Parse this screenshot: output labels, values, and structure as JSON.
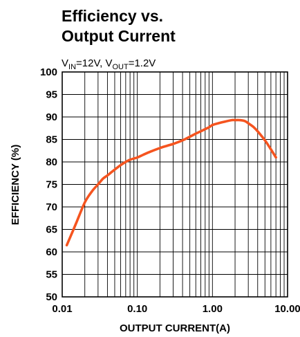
{
  "chart_data": {
    "type": "line",
    "title_line1": "Efficiency vs.",
    "title_line2": "Output Current",
    "condition": {
      "vin_prefix": "V",
      "vin_sub": "IN",
      "vin_value": "=12V, ",
      "vout_prefix": "V",
      "vout_sub": "OUT",
      "vout_value": "=1.2V"
    },
    "xlabel": "OUTPUT CURRENT(A)",
    "ylabel": "EFFICIENCY (%)",
    "x_scale": "log",
    "xlim": [
      0.01,
      10
    ],
    "ylim": [
      50,
      100
    ],
    "x_ticks": [
      {
        "value": 0.01,
        "label": "0.01"
      },
      {
        "value": 0.1,
        "label": "0.10"
      },
      {
        "value": 1,
        "label": "1.00"
      },
      {
        "value": 10,
        "label": "10.00"
      }
    ],
    "y_ticks": [
      {
        "value": 100,
        "label": "100"
      },
      {
        "value": 95,
        "label": "95"
      },
      {
        "value": 90,
        "label": "90"
      },
      {
        "value": 85,
        "label": "85"
      },
      {
        "value": 80,
        "label": "80"
      },
      {
        "value": 75,
        "label": "75"
      },
      {
        "value": 70,
        "label": "70"
      },
      {
        "value": 65,
        "label": "65"
      },
      {
        "value": 60,
        "label": "60"
      },
      {
        "value": 55,
        "label": "55"
      },
      {
        "value": 50,
        "label": "50"
      }
    ],
    "grid": true,
    "series": [
      {
        "color": "#f5541f",
        "x": [
          0.0115,
          0.015,
          0.02,
          0.025,
          0.03,
          0.035,
          0.04,
          0.05,
          0.06,
          0.07,
          0.08,
          0.1,
          0.12,
          0.15,
          0.2,
          0.25,
          0.3,
          0.4,
          0.5,
          0.6,
          0.7,
          0.8,
          0.9,
          1.0,
          1.2,
          1.5,
          1.8,
          2.0,
          2.3,
          2.7,
          3.0,
          3.5,
          4.0,
          5.0,
          6.0,
          7.0
        ],
        "y": [
          61.5,
          66,
          71,
          73.5,
          75,
          76.3,
          77,
          78.3,
          79.3,
          80,
          80.5,
          81,
          81.6,
          82.3,
          83.1,
          83.6,
          84,
          84.8,
          85.6,
          86.3,
          86.8,
          87.3,
          87.7,
          88.2,
          88.6,
          89,
          89.3,
          89.3,
          89.3,
          89.1,
          88.6,
          87.8,
          86.8,
          84.8,
          82.8,
          81
        ]
      }
    ]
  }
}
